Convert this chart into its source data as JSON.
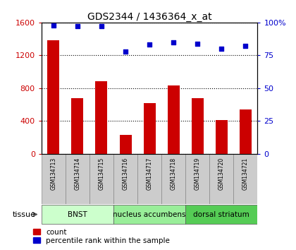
{
  "title": "GDS2344 / 1436364_x_at",
  "samples": [
    "GSM134713",
    "GSM134714",
    "GSM134715",
    "GSM134716",
    "GSM134717",
    "GSM134718",
    "GSM134719",
    "GSM134720",
    "GSM134721"
  ],
  "counts": [
    1380,
    680,
    880,
    230,
    620,
    830,
    680,
    410,
    540
  ],
  "percentiles": [
    98,
    97,
    97,
    78,
    83,
    85,
    84,
    80,
    82
  ],
  "ylim_left": [
    0,
    1600
  ],
  "ylim_right": [
    0,
    100
  ],
  "yticks_left": [
    0,
    400,
    800,
    1200,
    1600
  ],
  "yticks_right": [
    0,
    25,
    50,
    75,
    100
  ],
  "bar_color": "#cc0000",
  "dot_color": "#0000cc",
  "grid_color": "#000000",
  "tissue_groups": [
    {
      "label": "BNST",
      "indices": [
        0,
        1,
        2
      ],
      "color": "#ccffcc"
    },
    {
      "label": "nucleus accumbens",
      "indices": [
        3,
        4,
        5
      ],
      "color": "#99ee99"
    },
    {
      "label": "dorsal striatum",
      "indices": [
        6,
        7,
        8
      ],
      "color": "#55cc55"
    }
  ],
  "bar_width": 0.5,
  "tissue_label": "tissue",
  "legend_count_label": "count",
  "legend_percentile_label": "percentile rank within the sample",
  "bg_color": "#ffffff",
  "sample_box_color": "#cccccc",
  "tick_label_color_left": "#cc0000",
  "tick_label_color_right": "#0000cc"
}
